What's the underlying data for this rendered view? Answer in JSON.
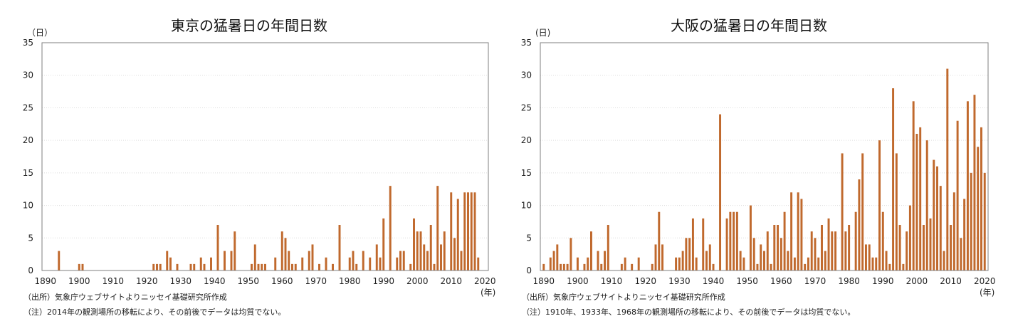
{
  "colors": {
    "bar": "#C0692D",
    "axis": "#7f7f7f",
    "grid": "#dddddd"
  },
  "chart_data": [
    {
      "type": "bar",
      "title": "東京の猛暑日の年間日数",
      "ylabel": "（日）",
      "xlabel": "(年)",
      "ylim": [
        0,
        35
      ],
      "yticks": [
        0,
        5,
        10,
        15,
        20,
        25,
        30,
        35
      ],
      "xlim": [
        1889,
        2021
      ],
      "xticks": [
        1890,
        1900,
        1910,
        1920,
        1930,
        1940,
        1950,
        1960,
        1970,
        1980,
        1990,
        2000,
        2010,
        2020
      ],
      "grid": true,
      "source": "（出所）気象庁ウェブサイトよりニッセイ基礎研究所作成",
      "note": "（注）2014年の観測場所の移転により、その前後でデータは均質でない。",
      "x": [
        1894,
        1900,
        1901,
        1922,
        1923,
        1924,
        1926,
        1927,
        1929,
        1933,
        1934,
        1936,
        1937,
        1939,
        1941,
        1943,
        1945,
        1946,
        1948,
        1951,
        1952,
        1953,
        1954,
        1955,
        1958,
        1960,
        1961,
        1962,
        1963,
        1964,
        1966,
        1968,
        1969,
        1971,
        1973,
        1975,
        1977,
        1980,
        1981,
        1982,
        1984,
        1986,
        1988,
        1989,
        1990,
        1992,
        1994,
        1995,
        1996,
        1998,
        1999,
        2000,
        2001,
        2002,
        2003,
        2004,
        2005,
        2006,
        2007,
        2008,
        2010,
        2011,
        2012,
        2013,
        2014,
        2015,
        2016,
        2017,
        2018,
        2019,
        2020
      ],
      "values": [
        3,
        1,
        1,
        1,
        1,
        1,
        3,
        2,
        1,
        1,
        1,
        2,
        1,
        2,
        7,
        3,
        3,
        6,
        0,
        1,
        4,
        1,
        1,
        1,
        2,
        6,
        5,
        3,
        1,
        1,
        2,
        3,
        4,
        1,
        2,
        1,
        7,
        2,
        3,
        1,
        3,
        2,
        4,
        2,
        8,
        13,
        2,
        3,
        3,
        1,
        8,
        6,
        6,
        4,
        3,
        7,
        1,
        13,
        4,
        6,
        12,
        5,
        11,
        3,
        12,
        12,
        12,
        12,
        2,
        0,
        0
      ],
      "values_note": ""
    },
    {
      "type": "bar",
      "title": "大阪の猛暑日の年間日数",
      "ylabel": "(日)",
      "xlabel": "(年)",
      "ylim": [
        0,
        35
      ],
      "yticks": [
        0,
        5,
        10,
        15,
        20,
        25,
        30,
        35
      ],
      "xlim": [
        1889,
        2021
      ],
      "xticks": [
        1890,
        1900,
        1910,
        1920,
        1930,
        1940,
        1950,
        1960,
        1970,
        1980,
        1990,
        2000,
        2010,
        2020
      ],
      "grid": true,
      "source": "（出所）気象庁ウェブサイトよりニッセイ基礎研究所作成",
      "note": "（注）1910年、1933年、1968年の観測場所の移転により、その前後でデータは均質でない。",
      "x": [
        1890,
        1892,
        1893,
        1894,
        1895,
        1896,
        1897,
        1898,
        1900,
        1902,
        1903,
        1904,
        1906,
        1907,
        1908,
        1909,
        1913,
        1914,
        1916,
        1918,
        1922,
        1923,
        1924,
        1925,
        1929,
        1930,
        1931,
        1932,
        1933,
        1934,
        1935,
        1937,
        1938,
        1939,
        1940,
        1942,
        1944,
        1945,
        1946,
        1947,
        1948,
        1949,
        1951,
        1952,
        1953,
        1954,
        1955,
        1956,
        1957,
        1958,
        1959,
        1960,
        1961,
        1962,
        1963,
        1964,
        1965,
        1966,
        1967,
        1968,
        1969,
        1970,
        1971,
        1972,
        1973,
        1974,
        1975,
        1976,
        1978,
        1979,
        1980,
        1982,
        1983,
        1984,
        1985,
        1986,
        1987,
        1988,
        1989,
        1990,
        1991,
        1992,
        1993,
        1994,
        1995,
        1996,
        1997,
        1998,
        1999,
        2000,
        2001,
        2002,
        2003,
        2004,
        2005,
        2006,
        2007,
        2008,
        2009,
        2010,
        2011,
        2012,
        2013,
        2014,
        2015,
        2016,
        2017,
        2018,
        2019,
        2020
      ],
      "values": [
        1,
        2,
        3,
        4,
        1,
        1,
        1,
        5,
        2,
        1,
        2,
        6,
        3,
        1,
        3,
        7,
        1,
        2,
        1,
        2,
        1,
        4,
        9,
        4,
        2,
        2,
        3,
        5,
        5,
        8,
        2,
        8,
        3,
        4,
        1,
        24,
        8,
        9,
        9,
        9,
        3,
        2,
        10,
        5,
        1,
        4,
        3,
        6,
        1,
        7,
        7,
        5,
        9,
        3,
        12,
        2,
        12,
        11,
        1,
        2,
        6,
        5,
        2,
        7,
        3,
        8,
        6,
        6,
        18,
        6,
        7,
        9,
        14,
        18,
        4,
        4,
        2,
        2,
        20,
        9,
        3,
        1,
        28,
        18,
        7,
        1,
        6,
        10,
        26,
        21,
        22,
        7,
        20,
        8,
        17,
        16,
        13,
        3,
        31,
        7,
        12,
        23,
        5,
        11,
        26,
        15,
        27,
        19,
        22,
        15
      ]
    }
  ]
}
